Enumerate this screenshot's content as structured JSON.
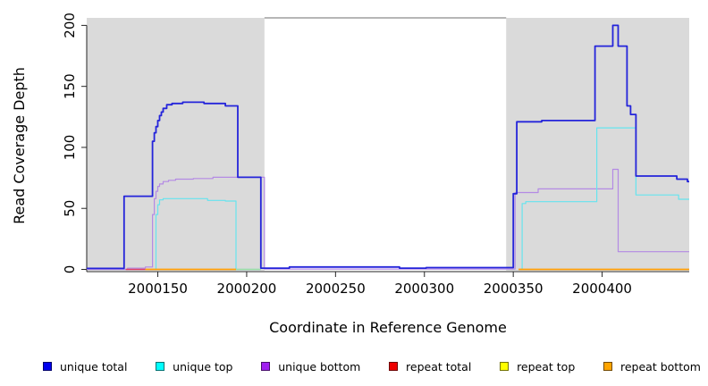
{
  "chart_data": {
    "type": "line",
    "line_style": "step",
    "title": "",
    "xlabel": "Coordinate in Reference Genome",
    "ylabel": "Read Coverage Depth",
    "xlim": [
      2000110,
      2000449
    ],
    "ylim": [
      0,
      200
    ],
    "x_ticks": [
      2000150,
      2000200,
      2000250,
      2000300,
      2000350,
      2000400
    ],
    "y_ticks": [
      0,
      50,
      100,
      150,
      200
    ],
    "grid": false,
    "shade_color": "#DADADA",
    "shaded_regions": [
      {
        "from": 2000110,
        "to": 2000210
      },
      {
        "from": 2000346,
        "to": 2000449
      }
    ],
    "series": [
      {
        "name": "unique bottom",
        "color": "#B48AE4",
        "width": 1.2,
        "segments": [
          [
            [
              2000110,
              0
            ],
            [
              2000133,
              0
            ],
            [
              2000133,
              1
            ],
            [
              2000143,
              1
            ],
            [
              2000143,
              2
            ],
            [
              2000147,
              2
            ],
            [
              2000147,
              45
            ],
            [
              2000148,
              58
            ],
            [
              2000149,
              64
            ],
            [
              2000150,
              68
            ],
            [
              2000151,
              70
            ],
            [
              2000153,
              72
            ],
            [
              2000156,
              73
            ],
            [
              2000160,
              74
            ],
            [
              2000170,
              74.5
            ],
            [
              2000181,
              75.5
            ],
            [
              2000210,
              75.5
            ],
            [
              2000210,
              0.3
            ],
            [
              2000351,
              0.3
            ],
            [
              2000351,
              63
            ],
            [
              2000364,
              63
            ],
            [
              2000364,
              66
            ],
            [
              2000406,
              66
            ],
            [
              2000406,
              82
            ],
            [
              2000409,
              82
            ],
            [
              2000409,
              14.5
            ],
            [
              2000449,
              14.5
            ]
          ]
        ]
      },
      {
        "name": "unique top",
        "color": "#66E4EE",
        "width": 1.2,
        "segments": [
          [
            [
              2000148,
              0
            ],
            [
              2000149,
              45
            ],
            [
              2000150,
              53
            ],
            [
              2000151,
              57
            ],
            [
              2000153,
              58
            ],
            [
              2000178,
              58
            ],
            [
              2000178,
              56.5
            ],
            [
              2000188,
              56
            ],
            [
              2000194,
              56
            ],
            [
              2000194,
              0
            ],
            [
              2000208,
              0
            ]
          ],
          [
            [
              2000354,
              0
            ],
            [
              2000355,
              54
            ],
            [
              2000357,
              55.5
            ],
            [
              2000397,
              55.5
            ],
            [
              2000397,
              116
            ],
            [
              2000419,
              116
            ],
            [
              2000419,
              61
            ],
            [
              2000443,
              61
            ],
            [
              2000443,
              57.5
            ],
            [
              2000449,
              57.5
            ]
          ]
        ]
      },
      {
        "name": "repeat total",
        "color": "#DC3C64",
        "width": 1.4,
        "segments": [
          [
            [
              2000132,
              0
            ],
            [
              2000143,
              0
            ]
          ]
        ]
      },
      {
        "name": "repeat top",
        "color": "#99DCA4",
        "width": 1.4,
        "segments": [
          [
            [
              2000194,
              0
            ],
            [
              2000208,
              0
            ]
          ]
        ]
      },
      {
        "name": "repeat bottom",
        "color": "#FF9E06",
        "width": 1.8,
        "segments": [
          [
            [
              2000143,
              0
            ],
            [
              2000194,
              0
            ]
          ],
          [
            [
              2000353,
              0
            ],
            [
              2000449,
              0
            ]
          ]
        ]
      },
      {
        "name": "unique total",
        "color": "#2424DA",
        "width": 1.8,
        "segments": [
          [
            [
              2000110,
              0.8
            ],
            [
              2000131,
              0.8
            ],
            [
              2000131,
              60
            ],
            [
              2000146,
              60
            ],
            [
              2000147,
              105
            ],
            [
              2000148,
              112
            ],
            [
              2000149,
              117
            ],
            [
              2000150,
              122
            ],
            [
              2000151,
              126
            ],
            [
              2000152,
              129
            ],
            [
              2000153,
              132
            ],
            [
              2000155,
              135
            ],
            [
              2000158,
              136
            ],
            [
              2000164,
              137
            ],
            [
              2000176,
              136
            ],
            [
              2000188,
              134
            ],
            [
              2000195,
              134
            ],
            [
              2000195,
              75.5
            ],
            [
              2000208,
              75.5
            ],
            [
              2000208,
              1
            ],
            [
              2000224,
              2
            ],
            [
              2000286,
              1
            ],
            [
              2000301,
              1.5
            ],
            [
              2000349,
              1.5
            ],
            [
              2000350,
              62
            ],
            [
              2000352,
              62
            ],
            [
              2000352,
              121
            ],
            [
              2000366,
              122
            ],
            [
              2000396,
              122
            ],
            [
              2000396,
              183
            ],
            [
              2000406,
              183
            ],
            [
              2000406,
              200
            ],
            [
              2000409,
              200
            ],
            [
              2000409,
              183
            ],
            [
              2000414,
              183
            ],
            [
              2000414,
              134
            ],
            [
              2000416,
              127
            ],
            [
              2000419,
              127
            ],
            [
              2000419,
              76.5
            ],
            [
              2000442,
              76.5
            ],
            [
              2000442,
              74
            ],
            [
              2000448,
              72
            ],
            [
              2000449,
              72
            ]
          ]
        ]
      }
    ]
  },
  "legend": {
    "items": [
      {
        "label": "unique total",
        "color": "#0000EE"
      },
      {
        "label": "unique top",
        "color": "#00FFFF"
      },
      {
        "label": "unique bottom",
        "color": "#A020F0"
      },
      {
        "label": "repeat total",
        "color": "#EE0000"
      },
      {
        "label": "repeat top",
        "color": "#FFFF00"
      },
      {
        "label": "repeat bottom",
        "color": "#FFA500"
      }
    ]
  }
}
